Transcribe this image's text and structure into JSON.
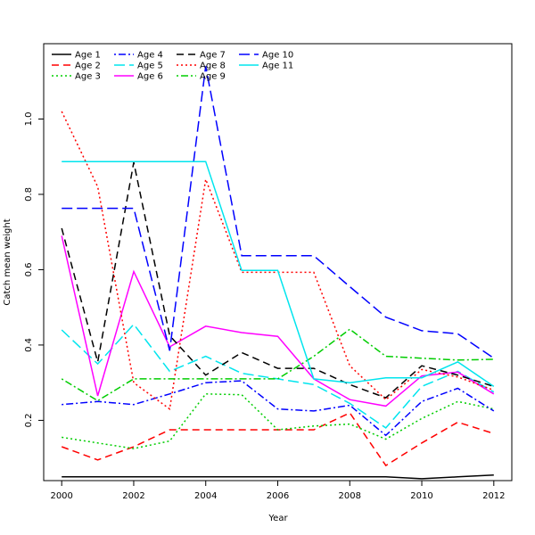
{
  "chart_data": {
    "type": "line",
    "xlabel": "Year",
    "ylabel": "Catch mean weight",
    "xlim": [
      1999.5,
      2012.5
    ],
    "ylim": [
      0.04,
      1.2
    ],
    "xticks": [
      2000,
      2002,
      2004,
      2006,
      2008,
      2010,
      2012
    ],
    "yticks": [
      0.2,
      0.4,
      0.6,
      0.8,
      1.0
    ],
    "ytick_labels": [
      "0.2",
      "0.4",
      "0.6",
      "0.8",
      "1.0"
    ],
    "grid": false,
    "legend_position": "top-left",
    "x": [
      2000,
      2001,
      2002,
      2003,
      2004,
      2005,
      2006,
      2007,
      2008,
      2009,
      2010,
      2011,
      2012
    ],
    "series": [
      {
        "name": "Age 1",
        "color": "#000000",
        "dash": "solid",
        "values": [
          0.05,
          0.05,
          0.05,
          0.05,
          0.05,
          0.05,
          0.05,
          0.05,
          0.05,
          0.05,
          0.045,
          0.05,
          0.055
        ]
      },
      {
        "name": "Age 2",
        "color": "#ff0000",
        "dash": "dashed",
        "values": [
          0.13,
          0.095,
          0.13,
          0.175,
          0.175,
          0.175,
          0.175,
          0.175,
          0.22,
          0.08,
          0.14,
          0.195,
          0.165
        ]
      },
      {
        "name": "Age 3",
        "color": "#00cd00",
        "dash": "dotted",
        "values": [
          0.155,
          0.14,
          0.125,
          0.145,
          0.27,
          0.268,
          0.175,
          0.185,
          0.19,
          0.15,
          0.205,
          0.25,
          0.23
        ]
      },
      {
        "name": "Age 4",
        "color": "#0000ff",
        "dash": "dotdash",
        "values": [
          0.242,
          0.25,
          0.242,
          0.27,
          0.3,
          0.305,
          0.23,
          0.225,
          0.24,
          0.16,
          0.25,
          0.285,
          0.225
        ]
      },
      {
        "name": "Age 5",
        "color": "#00e5ee",
        "dash": "longdash",
        "values": [
          0.44,
          0.35,
          0.455,
          0.33,
          0.37,
          0.325,
          0.31,
          0.295,
          0.245,
          0.18,
          0.29,
          0.33,
          0.275
        ]
      },
      {
        "name": "Age 6",
        "color": "#ff00ff",
        "dash": "solid",
        "values": [
          0.69,
          0.265,
          0.595,
          0.395,
          0.45,
          0.433,
          0.423,
          0.31,
          0.255,
          0.238,
          0.318,
          0.328,
          0.27
        ]
      },
      {
        "name": "Age 7",
        "color": "#000000",
        "dash": "dashed",
        "values": [
          0.71,
          0.355,
          0.885,
          0.425,
          0.32,
          0.38,
          0.338,
          0.338,
          0.295,
          0.26,
          0.345,
          0.32,
          0.29
        ]
      },
      {
        "name": "Age 8",
        "color": "#ff0000",
        "dash": "dotted",
        "values": [
          1.02,
          0.82,
          0.3,
          0.23,
          0.84,
          0.593,
          0.593,
          0.593,
          0.345,
          0.255,
          0.335,
          0.315,
          0.28
        ]
      },
      {
        "name": "Age 9",
        "color": "#00cd00",
        "dash": "dotdash",
        "values": [
          0.31,
          0.252,
          0.31,
          0.31,
          0.31,
          0.31,
          0.31,
          0.37,
          0.442,
          0.37,
          0.365,
          0.36,
          0.362
        ]
      },
      {
        "name": "Age 10",
        "color": "#0000ff",
        "dash": "longdash",
        "values": [
          0.763,
          0.763,
          0.763,
          0.385,
          1.14,
          0.637,
          0.637,
          0.637,
          0.555,
          0.474,
          0.438,
          0.43,
          0.365
        ]
      },
      {
        "name": "Age 11",
        "color": "#00e5ee",
        "dash": "solid",
        "values": [
          0.887,
          0.887,
          0.887,
          0.887,
          0.887,
          0.598,
          0.598,
          0.31,
          0.3,
          0.313,
          0.313,
          0.355,
          0.29
        ]
      }
    ]
  }
}
